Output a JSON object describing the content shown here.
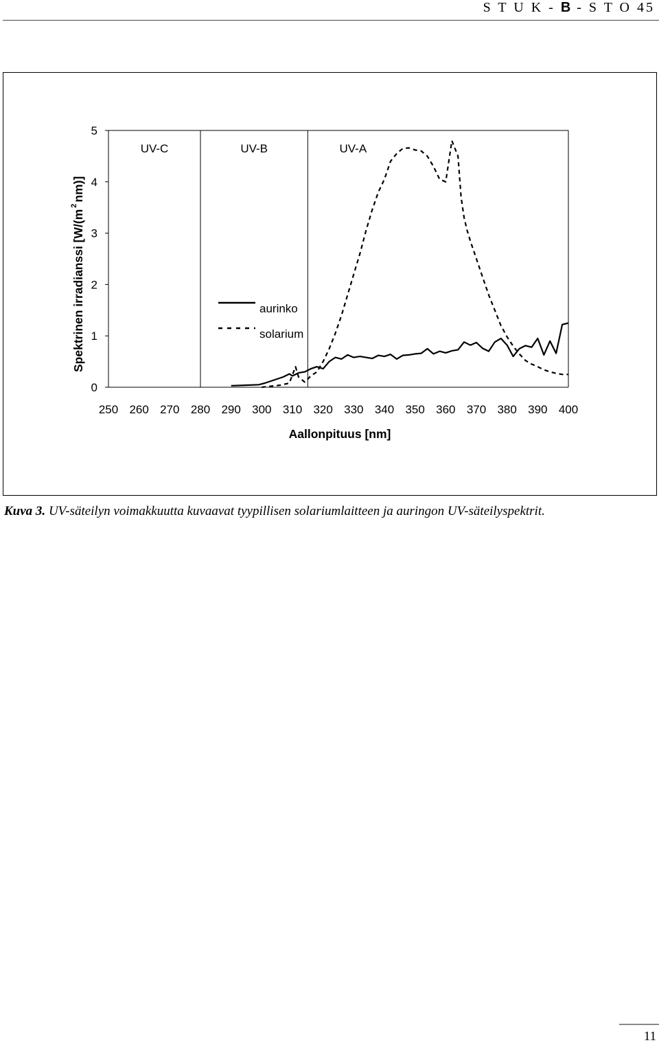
{
  "header": {
    "part1": "S T U K -",
    "part2": "B",
    "part3": "- S T O 45"
  },
  "figure": {
    "region_labels": [
      "UV-C",
      "UV-B",
      "UV-A"
    ],
    "caption_label": "Kuva 3.",
    "caption_text": "UV-säteilyn voimakkuutta kuvaavat tyypillisen solariumlaitteen ja auringon UV-säteilyspektrit."
  },
  "chart_data": {
    "type": "line",
    "xlabel": "Aallonpituus [nm]",
    "ylabel_pre": "Spektrinen irradianssi [W/(m",
    "ylabel_sup": "2",
    "ylabel_post": "nm)]",
    "xlim": [
      250,
      400
    ],
    "ylim": [
      0,
      5
    ],
    "xticks": [
      250,
      260,
      270,
      280,
      290,
      300,
      310,
      320,
      330,
      340,
      350,
      360,
      370,
      380,
      390,
      400
    ],
    "yticks": [
      0,
      1,
      2,
      3,
      4,
      5
    ],
    "region_boundaries": [
      280,
      315
    ],
    "legend_position": "left-middle",
    "series": [
      {
        "name": "aurinko",
        "style": "solid",
        "x": [
          290,
          295,
          299,
          301,
          303,
          305,
          307,
          309,
          310,
          312,
          314,
          316,
          318,
          320,
          322,
          324,
          326,
          328,
          330,
          332,
          334,
          336,
          338,
          340,
          342,
          344,
          346,
          348,
          350,
          352,
          354,
          356,
          358,
          360,
          362,
          364,
          366,
          368,
          370,
          372,
          374,
          376,
          378,
          380,
          382,
          384,
          386,
          388,
          390,
          392,
          394,
          396,
          398,
          400
        ],
        "y": [
          0.03,
          0.04,
          0.05,
          0.08,
          0.12,
          0.16,
          0.2,
          0.26,
          0.22,
          0.28,
          0.3,
          0.36,
          0.4,
          0.36,
          0.5,
          0.58,
          0.55,
          0.63,
          0.58,
          0.6,
          0.58,
          0.56,
          0.62,
          0.6,
          0.64,
          0.55,
          0.62,
          0.63,
          0.65,
          0.66,
          0.75,
          0.65,
          0.7,
          0.67,
          0.71,
          0.73,
          0.88,
          0.82,
          0.87,
          0.76,
          0.7,
          0.88,
          0.95,
          0.82,
          0.6,
          0.75,
          0.81,
          0.78,
          0.95,
          0.63,
          0.9,
          0.66,
          1.22,
          1.25
        ]
      },
      {
        "name": "solarium",
        "style": "dashed",
        "x": [
          300,
          303,
          306,
          309,
          311,
          312,
          314,
          316,
          318,
          320,
          322,
          324,
          326,
          328,
          330,
          332,
          334,
          336,
          338,
          340,
          342,
          344,
          346,
          348,
          350,
          352,
          354,
          356,
          358,
          360,
          362,
          364,
          365,
          366,
          367,
          368,
          370,
          372,
          374,
          376,
          378,
          380,
          382,
          384,
          386,
          388,
          390,
          392,
          394,
          396,
          398,
          400
        ],
        "y": [
          0.0,
          0.02,
          0.04,
          0.08,
          0.4,
          0.2,
          0.1,
          0.22,
          0.3,
          0.5,
          0.75,
          1.05,
          1.4,
          1.8,
          2.2,
          2.6,
          3.05,
          3.45,
          3.8,
          4.05,
          4.4,
          4.55,
          4.65,
          4.66,
          4.62,
          4.6,
          4.5,
          4.3,
          4.05,
          4.0,
          4.8,
          4.5,
          3.7,
          3.3,
          3.05,
          2.85,
          2.5,
          2.15,
          1.8,
          1.5,
          1.2,
          0.98,
          0.8,
          0.65,
          0.52,
          0.45,
          0.4,
          0.34,
          0.3,
          0.27,
          0.25,
          0.25
        ]
      }
    ]
  },
  "footer": {
    "page_number": "11"
  }
}
